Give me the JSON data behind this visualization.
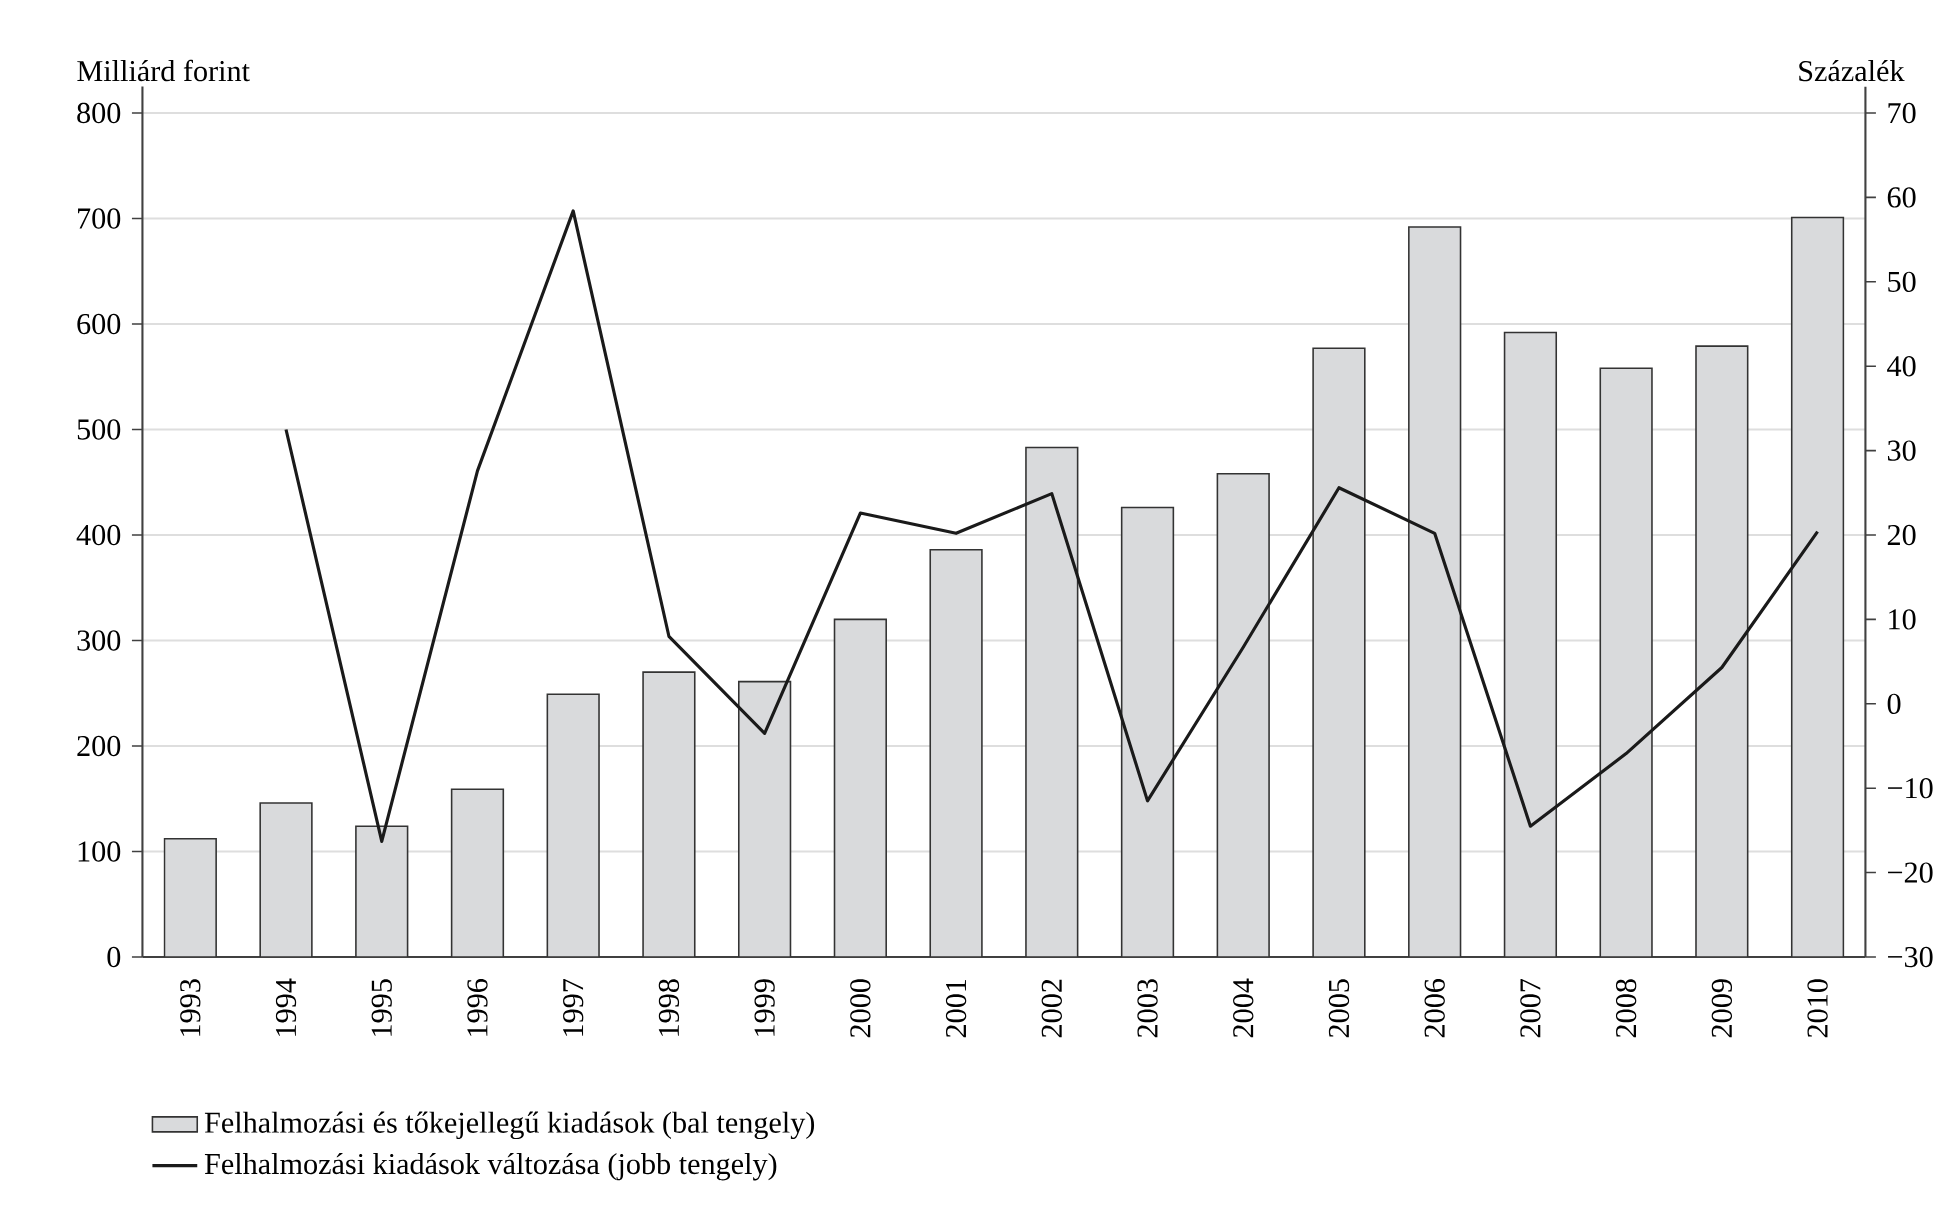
{
  "chart_data": {
    "type": "bar",
    "categories": [
      "1993",
      "1994",
      "1995",
      "1996",
      "1997",
      "1998",
      "1999",
      "2000",
      "2001",
      "2002",
      "2003",
      "2004",
      "2005",
      "2006",
      "2007",
      "2008",
      "2009",
      "2010"
    ],
    "ylabel": "Milliárd forint",
    "y2label": "Százalék",
    "ylim": [
      0,
      825
    ],
    "yticks": [
      0,
      100,
      200,
      300,
      400,
      500,
      600,
      700,
      800
    ],
    "y2lim": [
      -30,
      73.125
    ],
    "y2ticks": [
      {
        "value": -30,
        "label": "−30"
      },
      {
        "value": -20,
        "label": "−20"
      },
      {
        "value": -10,
        "label": "−10"
      },
      0,
      10,
      20,
      30,
      40,
      50,
      60,
      70
    ],
    "grid": "y",
    "legend": "bottom left",
    "series": [
      {
        "name": "Felhalmozási és tőkejellegű kiadások (bal tengely)",
        "color": "#d9dadc",
        "values": [
          112,
          146,
          124,
          159,
          249,
          270,
          261,
          320,
          386,
          483,
          426,
          458,
          577,
          692,
          592,
          558,
          579,
          701
        ]
      },
      {
        "name": "Felhalmozási kiadások változása (jobb tengely)",
        "type": "line",
        "axis": "y2",
        "color": "#1a1a1a",
        "values": [
          null,
          32.5,
          -16.3,
          27.6,
          58.4,
          8.0,
          -3.5,
          22.6,
          20.2,
          24.9,
          -11.5,
          6.7,
          25.6,
          20.2,
          -14.5,
          -5.9,
          4.3,
          20.4
        ]
      }
    ]
  }
}
